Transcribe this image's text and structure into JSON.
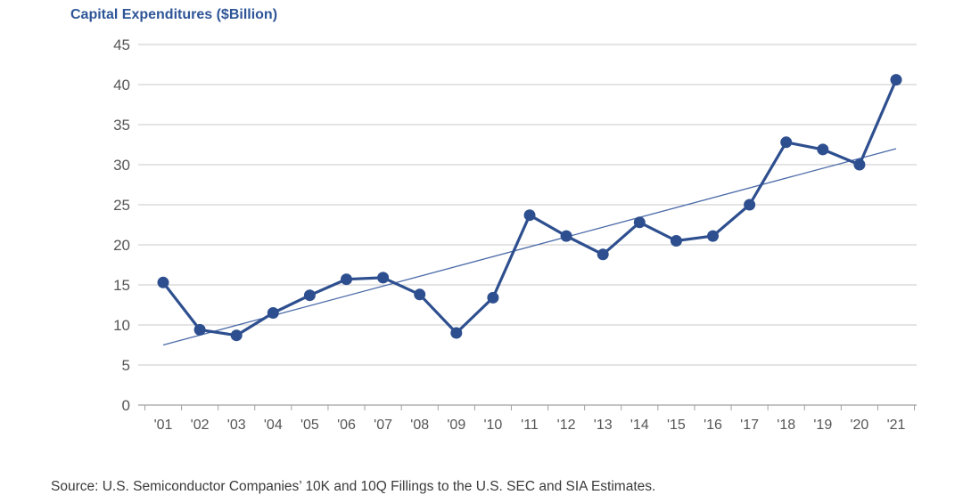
{
  "chart_data": {
    "type": "line",
    "title": "Capital Expenditures ($Billion)",
    "xlabel": "",
    "ylabel": "",
    "categories": [
      "'01",
      "'02",
      "'03",
      "'04",
      "'05",
      "'06",
      "'07",
      "'08",
      "'09",
      "'10",
      "'11",
      "'12",
      "'13",
      "'14",
      "'15",
      "'16",
      "'17",
      "'18",
      "'19",
      "'20",
      "'21"
    ],
    "series": [
      {
        "name": "Capital Expenditures",
        "values": [
          15.3,
          9.4,
          8.7,
          11.5,
          13.7,
          15.7,
          15.9,
          13.8,
          9.0,
          13.4,
          23.7,
          21.1,
          18.8,
          22.8,
          20.5,
          21.1,
          25.0,
          32.8,
          31.9,
          30.0,
          40.6
        ],
        "color": "#2e4f8f"
      },
      {
        "name": "Trend",
        "start": 7.5,
        "end": 32.0,
        "color": "#4a6aa8"
      }
    ],
    "ylim": [
      0,
      45
    ],
    "yticks": [
      "0",
      "5",
      "10",
      "15",
      "20",
      "25",
      "30",
      "35",
      "40",
      "45"
    ],
    "ytick_values": [
      0,
      5,
      10,
      15,
      20,
      25,
      30,
      35,
      40,
      45
    ],
    "grid": true,
    "gridColor": "#c8c8c8",
    "axisColor": "#a0a0a0"
  },
  "source": "Source: U.S. Semiconductor Companies’ 10K and 10Q Fillings to the U.S. SEC and SIA Estimates."
}
